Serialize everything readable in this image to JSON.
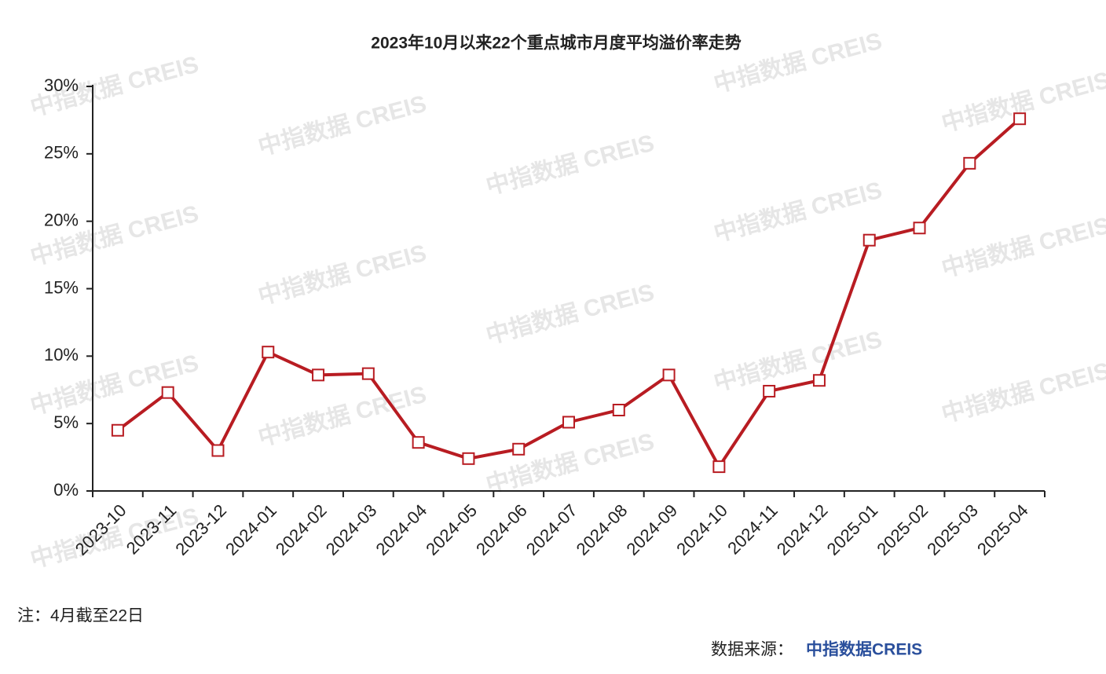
{
  "chart_data": {
    "type": "line",
    "title": "2023年10月以来22个重点城市月度平均溢价率走势",
    "categories": [
      "2023-10",
      "2023-11",
      "2023-12",
      "2024-01",
      "2024-02",
      "2024-03",
      "2024-04",
      "2024-05",
      "2024-06",
      "2024-07",
      "2024-08",
      "2024-09",
      "2024-10",
      "2024-11",
      "2024-12",
      "2025-01",
      "2025-02",
      "2025-03",
      "2025-04"
    ],
    "values": [
      4.5,
      7.3,
      3.0,
      10.3,
      8.6,
      8.7,
      3.6,
      2.4,
      3.1,
      5.1,
      6.0,
      8.6,
      1.8,
      7.4,
      8.2,
      18.6,
      19.5,
      24.3,
      27.6
    ],
    "color": "#b81c22",
    "ylim": [
      0,
      30
    ],
    "yticks": [
      {
        "value": 0,
        "label": "0%"
      },
      {
        "value": 5,
        "label": "5%"
      },
      {
        "value": 10,
        "label": "10%"
      },
      {
        "value": 15,
        "label": "15%"
      },
      {
        "value": 20,
        "label": "20%"
      },
      {
        "value": 25,
        "label": "25%"
      },
      {
        "value": 30,
        "label": "30%"
      }
    ],
    "grid": false,
    "watermark": "中指数据 CREIS"
  },
  "note": "注：4月截至22日",
  "source": {
    "label": "数据来源：",
    "name": "中指数据CREIS"
  }
}
